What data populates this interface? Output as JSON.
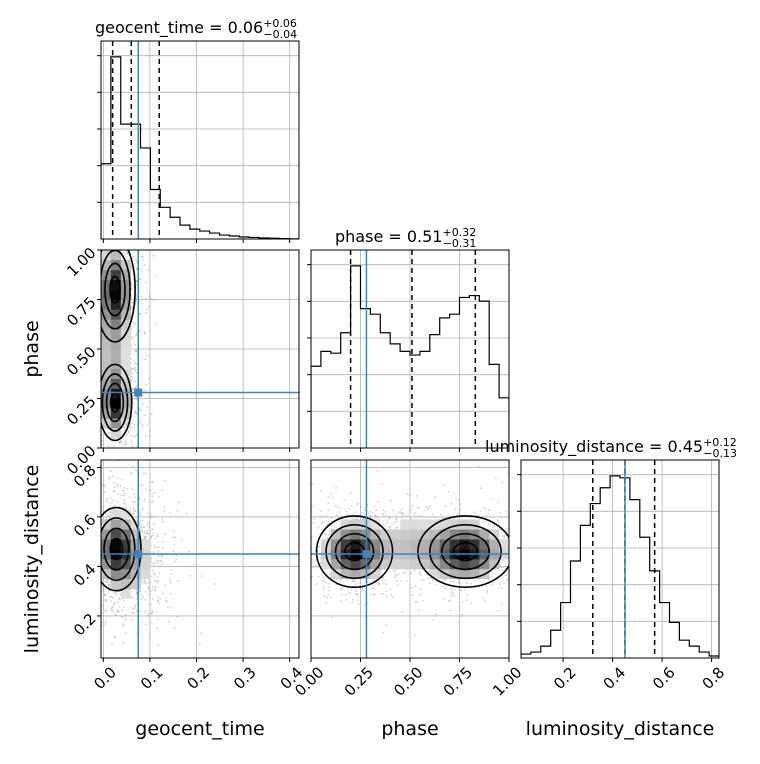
{
  "colors": {
    "truth": "#4682b4",
    "contour": "#000000",
    "hist": "#000000",
    "grid": "#b0b0b0",
    "scatter": "#9a9a9a"
  },
  "chart_data": {
    "type": "corner",
    "parameters": [
      "geocent_time",
      "phase",
      "luminosity_distance"
    ],
    "titles": [
      {
        "name": "geocent_time",
        "median": "0.06",
        "plus": "+0.06",
        "minus": "−0.04"
      },
      {
        "name": "phase",
        "median": "0.51",
        "plus": "+0.32",
        "minus": "−0.31"
      },
      {
        "name": "luminosity_distance",
        "median": "0.45",
        "plus": "+0.12",
        "minus": "−0.13"
      }
    ],
    "title_sep": " = ",
    "xlabels": [
      "geocent_time",
      "phase",
      "luminosity_distance"
    ],
    "ylabels": [
      "",
      "phase",
      "luminosity_distance"
    ],
    "ranges": [
      [
        -0.005,
        0.42
      ],
      [
        0.0,
        1.0
      ],
      [
        0.03,
        0.83
      ]
    ],
    "xticks": [
      {
        "values": [
          0.0,
          0.1,
          0.2,
          0.3,
          0.4
        ],
        "labels": [
          "0.0",
          "0.1",
          "0.2",
          "0.3",
          "0.4"
        ]
      },
      {
        "values": [
          0.0,
          0.25,
          0.5,
          0.75,
          1.0
        ],
        "labels": [
          "0.00",
          "0.25",
          "0.50",
          "0.75",
          "1.00"
        ]
      },
      {
        "values": [
          0.2,
          0.4,
          0.6,
          0.8
        ],
        "labels": [
          "0.2",
          "0.4",
          "0.6",
          "0.8"
        ]
      }
    ],
    "truths": [
      0.075,
      0.28,
      0.45
    ],
    "quantiles": [
      [
        0.02,
        0.06,
        0.12
      ],
      [
        0.2,
        0.51,
        0.83
      ],
      [
        0.32,
        0.45,
        0.57
      ]
    ],
    "histograms": [
      {
        "edges_min": -0.005,
        "bin_width": 0.0212,
        "counts": [
          0.38,
          0.92,
          0.58,
          0.58,
          0.46,
          0.25,
          0.16,
          0.11,
          0.07,
          0.05,
          0.04,
          0.03,
          0.02,
          0.015,
          0.01,
          0.008,
          0.005,
          0.004,
          0.002,
          0.001
        ]
      },
      {
        "edges_min": 0.0,
        "bin_width": 0.05,
        "counts": [
          0.44,
          0.52,
          0.51,
          0.62,
          0.98,
          0.75,
          0.72,
          0.62,
          0.56,
          0.52,
          0.5,
          0.52,
          0.61,
          0.7,
          0.72,
          0.81,
          0.82,
          0.79,
          0.45,
          0.27
        ]
      },
      {
        "edges_min": 0.03,
        "bin_width": 0.04,
        "counts": [
          0.02,
          0.03,
          0.06,
          0.14,
          0.28,
          0.49,
          0.67,
          0.78,
          0.86,
          0.92,
          0.91,
          0.8,
          0.61,
          0.44,
          0.28,
          0.18,
          0.09,
          0.06,
          0.03,
          0.01
        ]
      }
    ],
    "density_blobs": [
      {
        "x": 0,
        "y": 1,
        "blobs": [
          [
            0.025,
            0.8,
            0.018,
            0.11,
            1.0
          ],
          [
            0.025,
            0.23,
            0.015,
            0.08,
            1.0
          ],
          [
            0.02,
            0.5,
            0.02,
            0.2,
            0.35
          ]
        ]
      },
      {
        "x": 0,
        "y": 2,
        "blobs": [
          [
            0.028,
            0.47,
            0.022,
            0.07,
            1.0
          ],
          [
            0.06,
            0.42,
            0.03,
            0.1,
            0.3
          ]
        ]
      },
      {
        "x": 1,
        "y": 2,
        "blobs": [
          [
            0.22,
            0.46,
            0.08,
            0.06,
            1.0
          ],
          [
            0.78,
            0.46,
            0.1,
            0.06,
            1.0
          ],
          [
            0.5,
            0.48,
            0.12,
            0.08,
            0.25
          ]
        ]
      }
    ]
  }
}
